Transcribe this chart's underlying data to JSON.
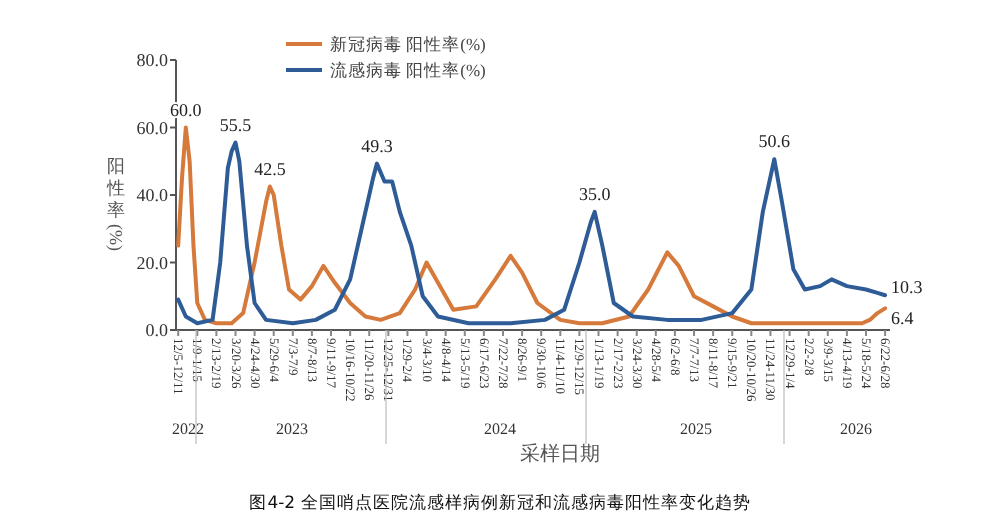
{
  "chart_data": {
    "type": "line",
    "title": "图4-2 全国哨点医院流感样病例新冠和流感病毒阳性率变化趋势",
    "xlabel": "采样日期",
    "ylabel": "阳性率(%)",
    "xlim": [
      "2022-12-01",
      "2026-07-01"
    ],
    "ylim": [
      0,
      80
    ],
    "yticks": [
      {
        "value": 0,
        "label": "0.0"
      },
      {
        "value": 20,
        "label": "20.0"
      },
      {
        "value": 40,
        "label": "40.0"
      },
      {
        "value": 60,
        "label": "60.0"
      },
      {
        "value": 80,
        "label": "80.0"
      }
    ],
    "xticks": [
      {
        "value": "2022-12-05",
        "label": "12/5-12/11"
      },
      {
        "value": "2023-01-09",
        "label": "1/9-1/15"
      },
      {
        "value": "2023-02-13",
        "label": "2/13-2/19"
      },
      {
        "value": "2023-03-20",
        "label": "3/20-3/26"
      },
      {
        "value": "2023-04-24",
        "label": "4/24-4/30"
      },
      {
        "value": "2023-05-29",
        "label": "5/29-6/4"
      },
      {
        "value": "2023-07-03",
        "label": "7/3-7/9"
      },
      {
        "value": "2023-08-07",
        "label": "8/7-8/13"
      },
      {
        "value": "2023-09-11",
        "label": "9/11-9/17"
      },
      {
        "value": "2023-10-16",
        "label": "10/16-10/22"
      },
      {
        "value": "2023-11-20",
        "label": "11/20-11/26"
      },
      {
        "value": "2023-12-25",
        "label": "12/25-12/31"
      },
      {
        "value": "2024-01-29",
        "label": "1/29-2/4"
      },
      {
        "value": "2024-03-04",
        "label": "3/4-3/10"
      },
      {
        "value": "2024-04-08",
        "label": "4/8-4/14"
      },
      {
        "value": "2024-05-13",
        "label": "5/13-5/19"
      },
      {
        "value": "2024-06-17",
        "label": "6/17-6/23"
      },
      {
        "value": "2024-07-22",
        "label": "7/22-7/28"
      },
      {
        "value": "2024-08-26",
        "label": "8/26-9/1"
      },
      {
        "value": "2024-09-30",
        "label": "9/30-10/6"
      },
      {
        "value": "2024-11-04",
        "label": "11/4-11/10"
      },
      {
        "value": "2024-12-09",
        "label": "12/9-12/15"
      },
      {
        "value": "2025-01-13",
        "label": "1/13-1/19"
      },
      {
        "value": "2025-02-17",
        "label": "2/17-2/23"
      },
      {
        "value": "2025-03-24",
        "label": "3/24-3/30"
      },
      {
        "value": "2025-04-28",
        "label": "4/28-5/4"
      },
      {
        "value": "2025-06-02",
        "label": "6/2-6/8"
      },
      {
        "value": "2025-07-07",
        "label": "7/7-7/13"
      },
      {
        "value": "2025-08-11",
        "label": "8/11-8/17"
      },
      {
        "value": "2025-09-15",
        "label": "9/15-9/21"
      },
      {
        "value": "2025-10-20",
        "label": "10/20-10/26"
      },
      {
        "value": "2025-11-24",
        "label": "11/24-11/30"
      },
      {
        "value": "2025-12-29",
        "label": "12/29-1/4"
      },
      {
        "value": "2026-02-02",
        "label": "2/2-2/8"
      },
      {
        "value": "2026-03-09",
        "label": "3/9-3/15"
      },
      {
        "value": "2026-04-13",
        "label": "4/13-4/19"
      },
      {
        "value": "2026-05-18",
        "label": "5/18-5/24"
      },
      {
        "value": "2026-06-22",
        "label": "6/22-6/28"
      }
    ],
    "annotations": [
      "2022",
      "2023",
      "2024",
      "2025",
      "2026"
    ],
    "legend": "top",
    "grid": false,
    "marker": "none",
    "line_style": "solid",
    "series": [
      {
        "name": "新冠病毒 阳性率(%)",
        "color": "#d67a3c",
        "x": [
          "2022-12-05",
          "2022-12-12",
          "2022-12-19",
          "2022-12-26",
          "2023-01-02",
          "2023-01-09",
          "2023-01-23",
          "2023-02-13",
          "2023-03-13",
          "2023-04-03",
          "2023-04-24",
          "2023-05-15",
          "2023-05-22",
          "2023-05-29",
          "2023-06-12",
          "2023-06-26",
          "2023-07-17",
          "2023-08-07",
          "2023-08-28",
          "2023-09-18",
          "2023-10-16",
          "2023-11-13",
          "2023-12-11",
          "2024-01-15",
          "2024-02-12",
          "2024-03-04",
          "2024-03-25",
          "2024-04-22",
          "2024-06-03",
          "2024-07-08",
          "2024-08-05",
          "2024-08-26",
          "2024-09-23",
          "2024-11-04",
          "2024-12-09",
          "2025-01-20",
          "2025-03-10",
          "2025-04-14",
          "2025-05-19",
          "2025-06-09",
          "2025-07-07",
          "2025-08-11",
          "2025-09-15",
          "2025-10-20",
          "2025-12-01",
          "2026-01-19",
          "2026-03-16",
          "2026-05-11",
          "2026-05-25",
          "2026-06-08",
          "2026-06-22"
        ],
        "values": [
          25,
          45,
          60.0,
          50,
          25,
          8,
          3,
          2,
          2,
          5,
          20,
          38,
          42.5,
          40,
          25,
          12,
          9,
          13,
          19,
          14,
          8,
          4,
          3,
          5,
          12,
          20,
          14,
          6,
          7,
          15,
          22,
          17,
          8,
          3,
          2,
          2,
          4,
          12,
          23,
          19,
          10,
          7,
          4,
          2,
          2,
          2,
          2,
          2,
          3,
          5,
          6.4
        ],
        "value_labels": [
          null,
          null,
          "60.0",
          null,
          null,
          null,
          null,
          null,
          null,
          null,
          null,
          null,
          "42.5",
          null,
          null,
          null,
          null,
          null,
          null,
          null,
          null,
          null,
          null,
          null,
          null,
          null,
          null,
          null,
          null,
          null,
          null,
          null,
          null,
          null,
          null,
          null,
          null,
          null,
          null,
          null,
          null,
          null,
          null,
          null,
          null,
          null,
          null,
          null,
          null,
          null,
          "6.4"
        ]
      },
      {
        "name": "流感病毒 阳性率(%)",
        "color": "#2e5c96",
        "x": [
          "2022-12-05",
          "2022-12-19",
          "2023-01-09",
          "2023-02-06",
          "2023-02-20",
          "2023-03-06",
          "2023-03-13",
          "2023-03-20",
          "2023-03-27",
          "2023-04-10",
          "2023-04-24",
          "2023-05-15",
          "2023-07-03",
          "2023-08-14",
          "2023-09-18",
          "2023-10-16",
          "2023-11-06",
          "2023-11-27",
          "2023-12-04",
          "2023-12-18",
          "2024-01-01",
          "2024-01-15",
          "2024-02-05",
          "2024-02-26",
          "2024-03-25",
          "2024-05-20",
          "2024-08-05",
          "2024-10-07",
          "2024-11-11",
          "2024-12-09",
          "2024-12-30",
          "2025-01-06",
          "2025-01-20",
          "2025-02-10",
          "2025-03-17",
          "2025-05-19",
          "2025-07-21",
          "2025-09-15",
          "2025-10-20",
          "2025-11-10",
          "2025-12-01",
          "2025-12-15",
          "2026-01-05",
          "2026-01-26",
          "2026-02-23",
          "2026-03-16",
          "2026-04-13",
          "2026-05-18",
          "2026-06-08",
          "2026-06-22"
        ],
        "values": [
          9,
          4,
          2,
          3,
          20,
          48,
          53,
          55.5,
          50,
          25,
          8,
          3,
          2,
          3,
          6,
          15,
          30,
          45,
          49.3,
          44,
          44,
          35,
          25,
          10,
          4,
          2,
          2,
          3,
          6,
          20,
          32,
          35.0,
          25,
          8,
          4,
          3,
          3,
          5,
          12,
          35,
          50.6,
          38,
          18,
          12,
          13,
          15,
          13,
          12,
          11,
          10.3
        ],
        "value_labels": [
          null,
          null,
          null,
          null,
          null,
          null,
          null,
          "55.5",
          null,
          null,
          null,
          null,
          null,
          null,
          null,
          null,
          null,
          null,
          "49.3",
          null,
          null,
          null,
          null,
          null,
          null,
          null,
          null,
          null,
          null,
          null,
          null,
          "35.0",
          null,
          null,
          null,
          null,
          null,
          null,
          null,
          null,
          "50.6",
          null,
          null,
          null,
          null,
          null,
          null,
          null,
          null,
          "10.3"
        ]
      }
    ]
  }
}
